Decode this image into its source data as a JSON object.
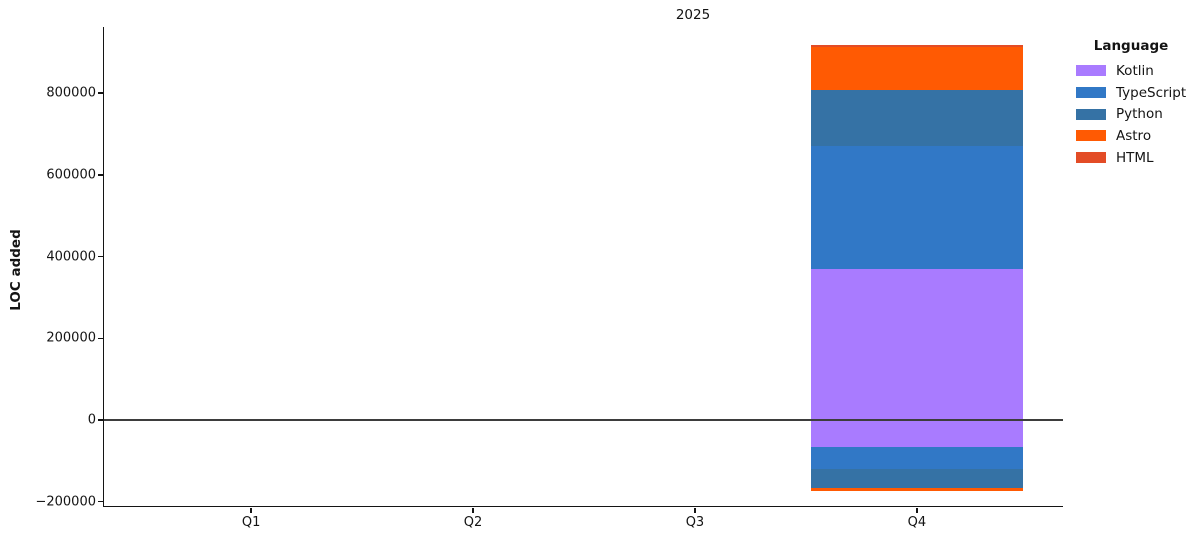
{
  "chart_data": {
    "type": "bar",
    "stacked": true,
    "title": "2025",
    "ylabel": "LOC added",
    "xlabel": "",
    "categories": [
      "Q1",
      "Q2",
      "Q3",
      "Q4"
    ],
    "series": [
      {
        "name": "Kotlin",
        "color": "#a97bff",
        "positive": [
          0,
          0,
          0,
          370000
        ],
        "negative": [
          0,
          0,
          0,
          -66000
        ]
      },
      {
        "name": "TypeScript",
        "color": "#3178c6",
        "positive": [
          0,
          0,
          0,
          300000
        ],
        "negative": [
          0,
          0,
          0,
          -54000
        ]
      },
      {
        "name": "Python",
        "color": "#3572a5",
        "positive": [
          0,
          0,
          0,
          138000
        ],
        "negative": [
          0,
          0,
          0,
          -46000
        ]
      },
      {
        "name": "Astro",
        "color": "#ff5a03",
        "positive": [
          0,
          0,
          0,
          106000
        ],
        "negative": [
          0,
          0,
          0,
          -7000
        ]
      },
      {
        "name": "HTML",
        "color": "#e34c26",
        "positive": [
          0,
          0,
          0,
          4000
        ],
        "negative": [
          0,
          0,
          0,
          0
        ]
      }
    ],
    "yticks": [
      -200000,
      0,
      200000,
      400000,
      600000,
      800000
    ],
    "ylim": [
      -213000,
      962000
    ],
    "xlim_units": [
      -0.663,
      3.663
    ],
    "bar_width_units": 0.956,
    "legend_title": "Language",
    "legend_position": "upper right",
    "grid": false,
    "zero_line": true,
    "axis_color": "#141414",
    "zero_line_color": "#3d3d3d"
  }
}
